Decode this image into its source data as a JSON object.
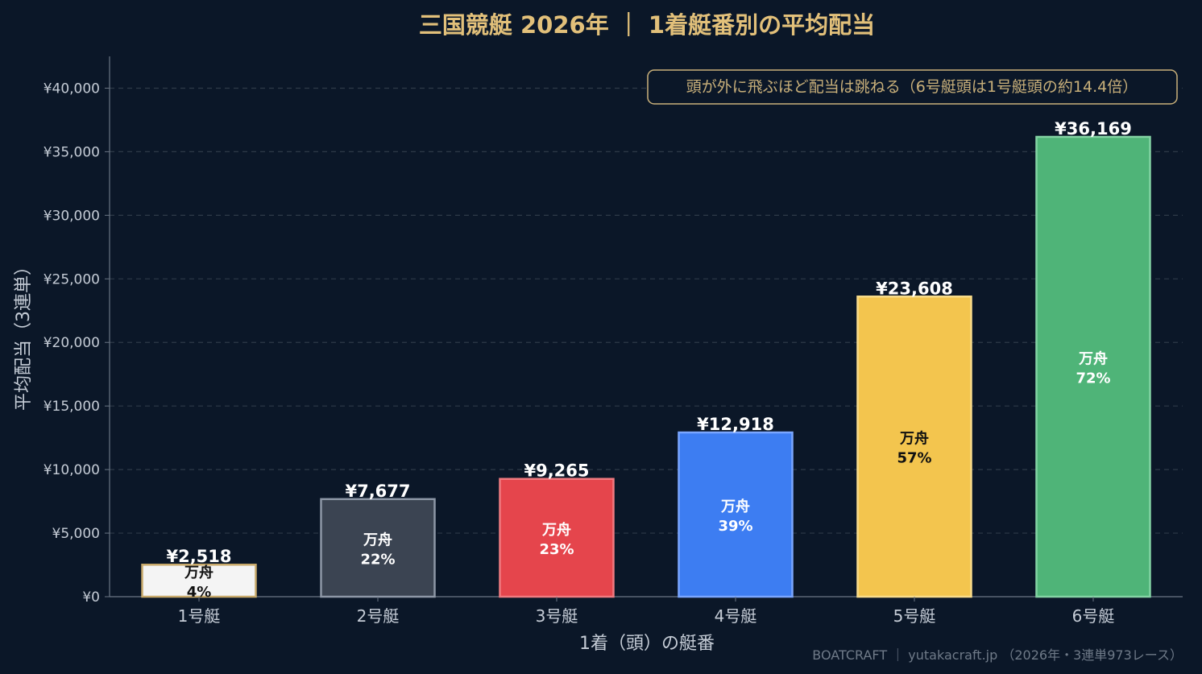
{
  "chart_data": {
    "type": "bar",
    "title": "三国競艇 2026年 ｜ 1着艇番別の平均配当",
    "xlabel": "1着（頭）の艇番",
    "ylabel": "平均配当（3連単）",
    "ylim": [
      0,
      42500
    ],
    "yticks": [
      0,
      5000,
      10000,
      15000,
      20000,
      25000,
      30000,
      35000,
      40000
    ],
    "ytick_labels": [
      "¥0",
      "¥5,000",
      "¥10,000",
      "¥15,000",
      "¥20,000",
      "¥25,000",
      "¥30,000",
      "¥35,000",
      "¥40,000"
    ],
    "categories": [
      "1号艇",
      "2号艇",
      "3号艇",
      "4号艇",
      "5号艇",
      "6号艇"
    ],
    "values": [
      2518,
      7677,
      9265,
      12918,
      23608,
      36169
    ],
    "value_labels": [
      "¥2,518",
      "¥7,677",
      "¥9,265",
      "¥12,918",
      "¥23,608",
      "¥36,169"
    ],
    "inner_label": "万舟",
    "manshu_pct": [
      "4%",
      "22%",
      "23%",
      "39%",
      "57%",
      "72%"
    ],
    "colors": [
      "#f4f4f4",
      "#3b4452",
      "#e5454c",
      "#3d7df2",
      "#f3c54e",
      "#4fb478"
    ],
    "edge_colors": [
      "#c8a96a",
      "#8d97a6",
      "#f07a80",
      "#7aa6ff",
      "#f9dc8a",
      "#84d4a4"
    ],
    "inner_text_colors": [
      "#111111",
      "#ffffff",
      "#ffffff",
      "#ffffff",
      "#111111",
      "#ffffff"
    ],
    "grid": true,
    "annotation": "頭が外に飛ぶほど配当は跳ねる（6号艇頭は1号艇頭の約14.4倍）"
  },
  "footer": "BOATCRAFT ｜ yutakacraft.jp （2026年・3連単973レース）",
  "colors": {
    "background": "#0b1728",
    "title": "#e2c07a",
    "grid": "#2e3a48",
    "axis": "#6b7684"
  }
}
